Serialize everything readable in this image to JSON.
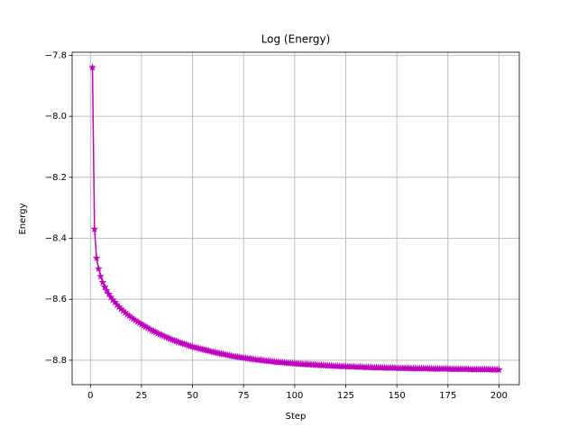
{
  "chart_data": {
    "type": "line",
    "title": "Log (Energy)",
    "x_label": "Step",
    "y_label": "Energy",
    "xlim": [
      -8.95,
      209.95
    ],
    "ylim": [
      -8.88,
      -7.79
    ],
    "xticks": [
      0,
      25,
      50,
      75,
      100,
      125,
      150,
      175,
      200
    ],
    "yticks": [
      {
        "value": -8.8,
        "label": "−8.8"
      },
      {
        "value": -8.6,
        "label": "−8.6"
      },
      {
        "value": -8.4,
        "label": "−8.4"
      },
      {
        "value": -8.2,
        "label": "−8.2"
      },
      {
        "value": -8.0,
        "label": "−8.0"
      },
      {
        "value": -7.8,
        "label": "−7.8"
      }
    ],
    "grid": true,
    "marker": "star",
    "x": [
      1,
      2,
      3,
      4,
      5,
      6,
      7,
      8,
      9,
      10,
      11,
      12,
      13,
      14,
      15,
      16,
      17,
      18,
      19,
      20,
      21,
      22,
      23,
      24,
      25,
      26,
      27,
      28,
      29,
      30,
      31,
      32,
      33,
      34,
      35,
      36,
      37,
      38,
      39,
      40,
      41,
      42,
      43,
      44,
      45,
      46,
      47,
      48,
      49,
      50,
      51,
      52,
      53,
      54,
      55,
      56,
      57,
      58,
      59,
      60,
      61,
      62,
      63,
      64,
      65,
      66,
      67,
      68,
      69,
      70,
      71,
      72,
      73,
      74,
      75,
      76,
      77,
      78,
      79,
      80,
      81,
      82,
      83,
      84,
      85,
      86,
      87,
      88,
      89,
      90,
      91,
      92,
      93,
      94,
      95,
      96,
      97,
      98,
      99,
      100,
      101,
      102,
      103,
      104,
      105,
      106,
      107,
      108,
      109,
      110,
      111,
      112,
      113,
      114,
      115,
      116,
      117,
      118,
      119,
      120,
      121,
      122,
      123,
      124,
      125,
      126,
      127,
      128,
      129,
      130,
      131,
      132,
      133,
      134,
      135,
      136,
      137,
      138,
      139,
      140,
      141,
      142,
      143,
      144,
      145,
      146,
      147,
      148,
      149,
      150,
      151,
      152,
      153,
      154,
      155,
      156,
      157,
      158,
      159,
      160,
      161,
      162,
      163,
      164,
      165,
      166,
      167,
      168,
      169,
      170,
      171,
      172,
      173,
      174,
      175,
      176,
      177,
      178,
      179,
      180,
      181,
      182,
      183,
      184,
      185,
      186,
      187,
      188,
      189,
      190,
      191,
      192,
      193,
      194,
      195,
      196,
      197,
      198,
      199,
      200
    ],
    "series": [
      {
        "color": "#bf00bf",
        "values": [
          -7.84,
          -8.37,
          -8.465,
          -8.5,
          -8.525,
          -8.545,
          -8.56,
          -8.572,
          -8.583,
          -8.593,
          -8.602,
          -8.61,
          -8.618,
          -8.625,
          -8.632,
          -8.638,
          -8.644,
          -8.65,
          -8.655,
          -8.66,
          -8.665,
          -8.669,
          -8.674,
          -8.678,
          -8.682,
          -8.686,
          -8.69,
          -8.694,
          -8.698,
          -8.702,
          -8.705,
          -8.708,
          -8.712,
          -8.715,
          -8.718,
          -8.721,
          -8.724,
          -8.727,
          -8.73,
          -8.733,
          -8.735,
          -8.738,
          -8.74,
          -8.743,
          -8.745,
          -8.747,
          -8.749,
          -8.752,
          -8.754,
          -8.756,
          -8.758,
          -8.759,
          -8.761,
          -8.763,
          -8.764,
          -8.766,
          -8.768,
          -8.769,
          -8.771,
          -8.773,
          -8.774,
          -8.776,
          -8.777,
          -8.779,
          -8.78,
          -8.781,
          -8.783,
          -8.784,
          -8.786,
          -8.787,
          -8.788,
          -8.789,
          -8.79,
          -8.791,
          -8.792,
          -8.793,
          -8.794,
          -8.795,
          -8.796,
          -8.797,
          -8.798,
          -8.799,
          -8.799,
          -8.8,
          -8.801,
          -8.802,
          -8.803,
          -8.803,
          -8.804,
          -8.805,
          -8.806,
          -8.806,
          -8.807,
          -8.807,
          -8.808,
          -8.809,
          -8.809,
          -8.81,
          -8.81,
          -8.811,
          -8.811,
          -8.812,
          -8.812,
          -8.813,
          -8.813,
          -8.813,
          -8.814,
          -8.814,
          -8.815,
          -8.815,
          -8.815,
          -8.816,
          -8.816,
          -8.817,
          -8.817,
          -8.817,
          -8.818,
          -8.818,
          -8.819,
          -8.819,
          -8.819,
          -8.82,
          -8.82,
          -8.82,
          -8.82,
          -8.821,
          -8.821,
          -8.821,
          -8.821,
          -8.822,
          -8.822,
          -8.822,
          -8.822,
          -8.823,
          -8.823,
          -8.823,
          -8.823,
          -8.824,
          -8.824,
          -8.824,
          -8.824,
          -8.824,
          -8.824,
          -8.825,
          -8.825,
          -8.825,
          -8.825,
          -8.825,
          -8.825,
          -8.826,
          -8.826,
          -8.826,
          -8.826,
          -8.826,
          -8.826,
          -8.826,
          -8.827,
          -8.827,
          -8.827,
          -8.827,
          -8.827,
          -8.827,
          -8.827,
          -8.827,
          -8.827,
          -8.828,
          -8.828,
          -8.828,
          -8.828,
          -8.828,
          -8.828,
          -8.828,
          -8.828,
          -8.828,
          -8.828,
          -8.829,
          -8.829,
          -8.829,
          -8.829,
          -8.829,
          -8.829,
          -8.829,
          -8.829,
          -8.829,
          -8.829,
          -8.83,
          -8.83,
          -8.83,
          -8.83,
          -8.83,
          -8.83,
          -8.83,
          -8.83,
          -8.83,
          -8.83,
          -8.831,
          -8.831,
          -8.831,
          -8.831,
          -8.831
        ]
      }
    ]
  }
}
